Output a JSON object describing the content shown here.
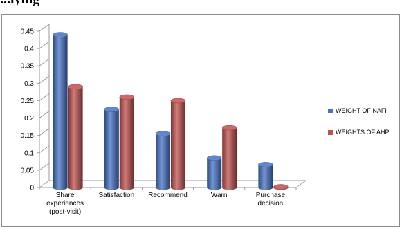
{
  "header": {
    "title_fragment": "...lying"
  },
  "chart_data": {
    "type": "bar",
    "categories": [
      [
        "Share",
        "experiences",
        "(post-visit)"
      ],
      [
        "Satisfaction"
      ],
      [
        "Recommend"
      ],
      [
        "Warn"
      ],
      [
        "Purchase",
        "decision"
      ]
    ],
    "series": [
      {
        "name": "WEIGHT OF NAFI",
        "color": "#4472C4",
        "values": [
          0.44,
          0.225,
          0.155,
          0.085,
          0.066
        ]
      },
      {
        "name": "WEIGHTS OF AHP",
        "color": "#C0504D",
        "values": [
          0.29,
          0.26,
          0.25,
          0.172,
          0.002
        ]
      }
    ],
    "ylim": [
      0,
      0.45
    ],
    "yticks": [
      "0",
      "0.05",
      "0.1",
      "0.15",
      "0.2",
      "0.25",
      "0.3",
      "0.35",
      "0.4",
      "0.45"
    ],
    "grid": false,
    "legend_position": "right",
    "style": "3d-cylinder"
  }
}
